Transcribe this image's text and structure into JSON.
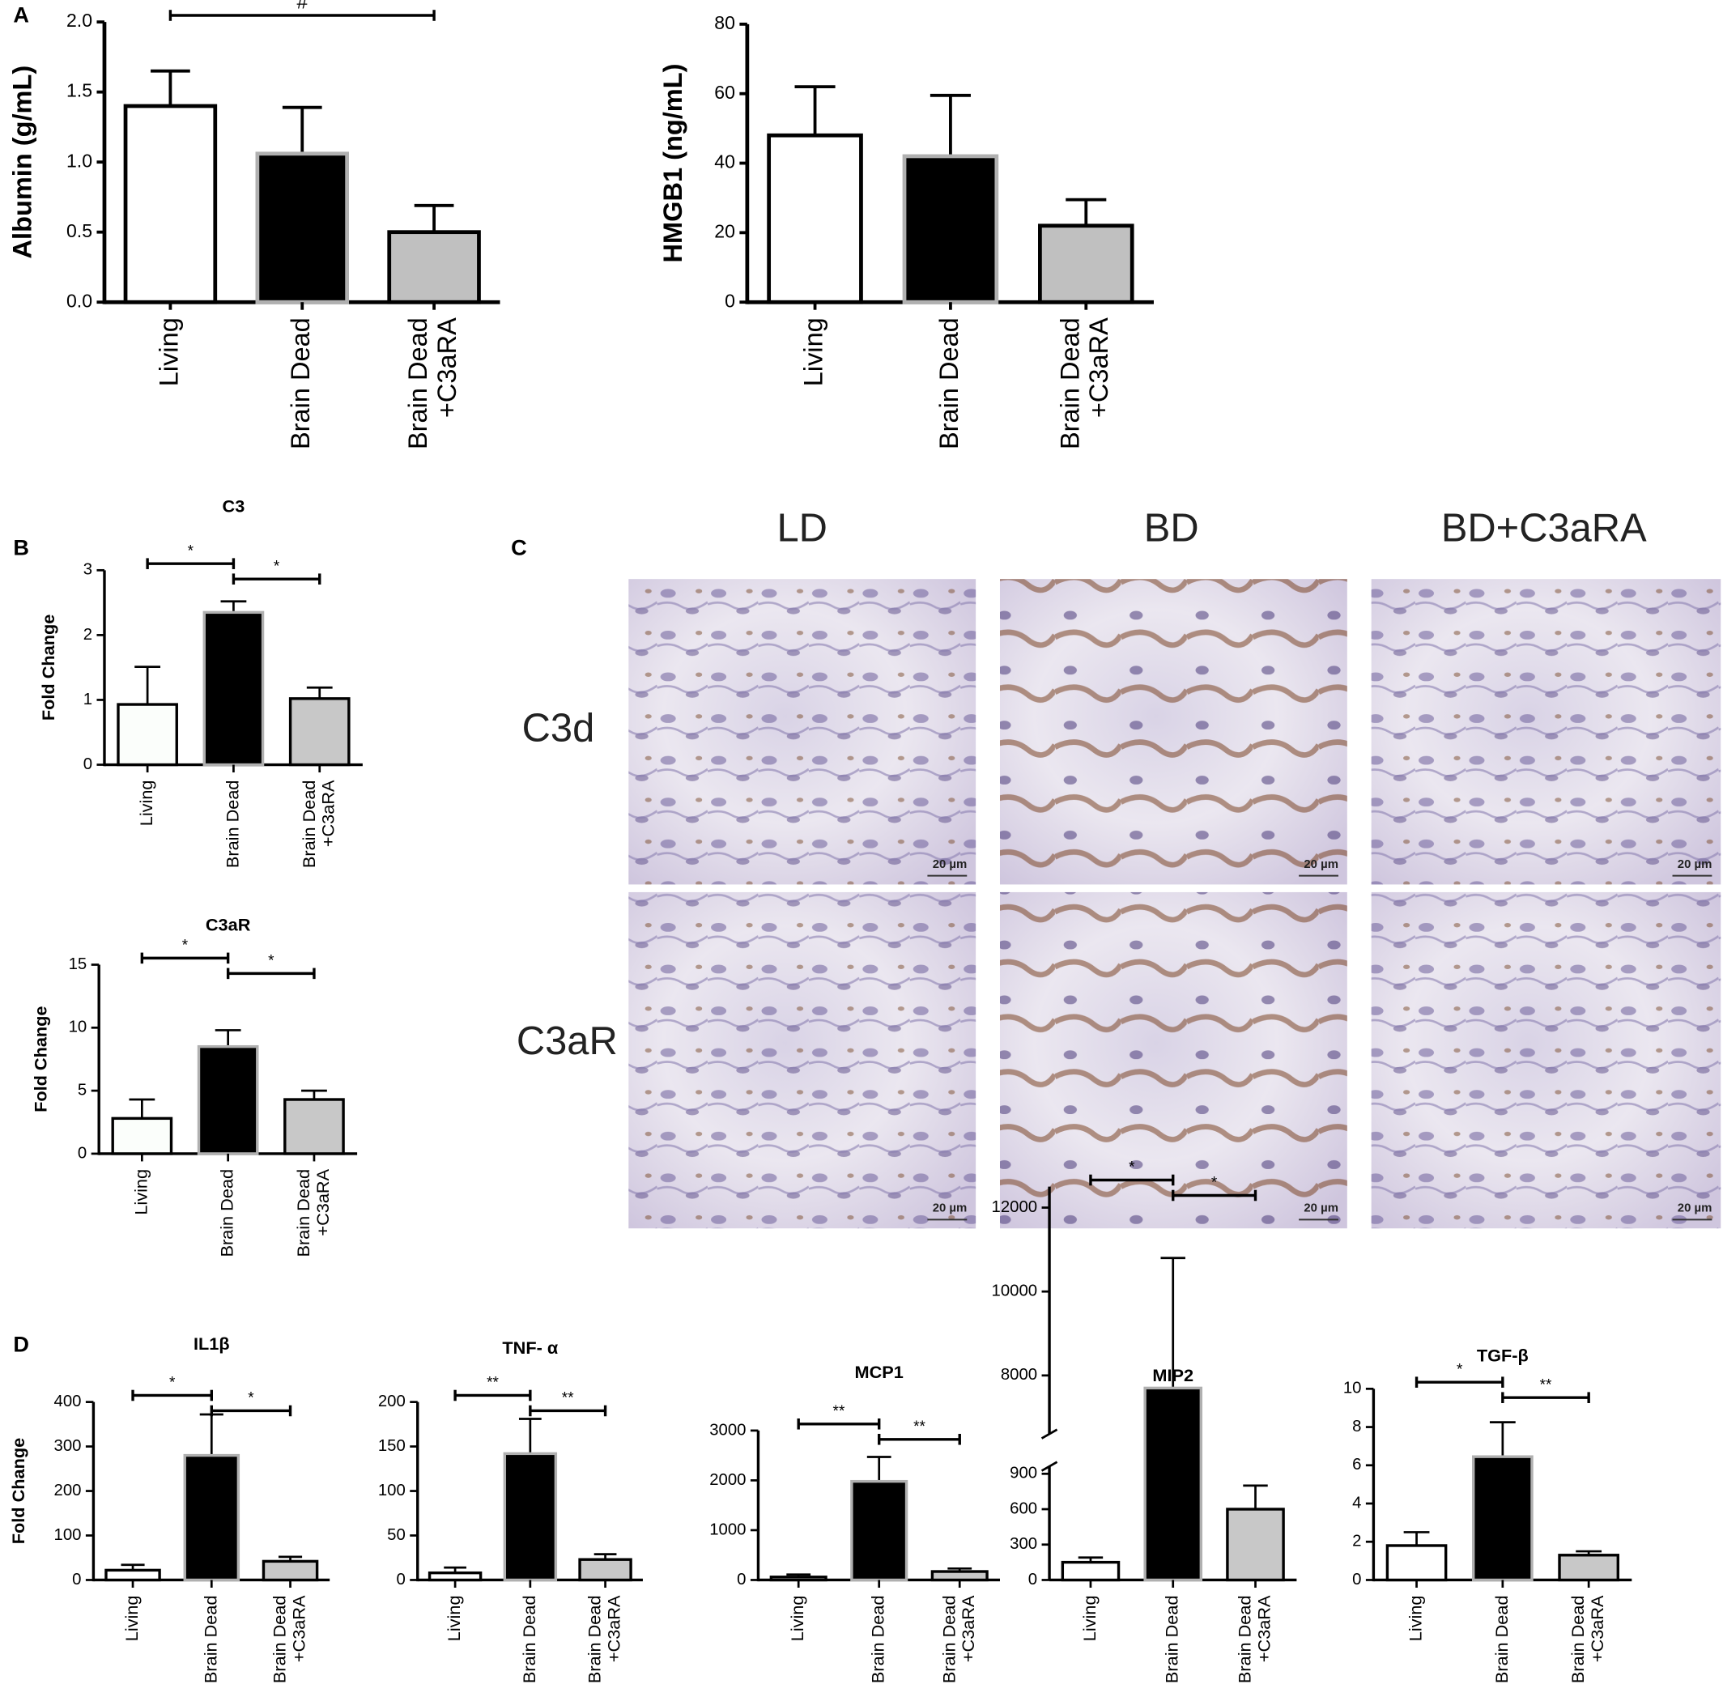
{
  "panel_labels": [
    "A",
    "B",
    "C",
    "D"
  ],
  "micrographs": {
    "columns": [
      "LD",
      "BD",
      "BD+C3aRA"
    ],
    "rows": [
      "C3d",
      "C3aR"
    ],
    "scale_bar": "20 µm"
  },
  "chart_data": [
    {
      "type": "bar",
      "ylabel": "Albumin (g/mL)",
      "categories": [
        "Living",
        "Brain Dead",
        "Brain Dead\n+C3aRA"
      ],
      "values": [
        1.4,
        1.06,
        0.5
      ],
      "errors": [
        0.25,
        0.33,
        0.19
      ],
      "colors": [
        "#ffffff",
        "#000000",
        "#c0c0c0"
      ],
      "ylim": [
        0,
        2
      ],
      "yticks": [
        {
          "value": 0,
          "label": "0.0"
        },
        {
          "value": 0.5,
          "label": "0.5"
        },
        {
          "value": 1,
          "label": "1.0"
        },
        {
          "value": 1.5,
          "label": "1.5"
        },
        {
          "value": 2,
          "label": "2.0"
        }
      ],
      "brackets": [
        {
          "between": [
            0,
            2
          ],
          "label": "#"
        }
      ]
    },
    {
      "type": "bar",
      "ylabel": "HMGB1 (ng/mL)",
      "categories": [
        "Living",
        "Brain Dead",
        "Brain Dead\n+C3aRA"
      ],
      "values": [
        48,
        42,
        22
      ],
      "errors": [
        14,
        17.5,
        7.5
      ],
      "colors": [
        "#ffffff",
        "#000000",
        "#c0c0c0"
      ],
      "ylim": [
        0,
        80
      ],
      "yticks": [
        0,
        20,
        40,
        60,
        80
      ],
      "brackets": []
    },
    {
      "type": "bar",
      "title": "C3",
      "ylabel": "Fold Change",
      "categories": [
        "Living",
        "Brain Dead",
        "Brain Dead\n+C3aRA"
      ],
      "values": [
        0.93,
        2.35,
        1.02
      ],
      "errors": [
        0.58,
        0.17,
        0.17
      ],
      "colors": [
        "#fbfefb",
        "#000000",
        "#c8c8c8"
      ],
      "ylim": [
        0,
        3
      ],
      "yticks": [
        0,
        1,
        2,
        3
      ],
      "brackets": [
        {
          "between": [
            0,
            1
          ],
          "label": "*"
        },
        {
          "between": [
            1,
            2
          ],
          "label": "*"
        }
      ]
    },
    {
      "type": "bar",
      "title": "C3aR",
      "ylabel": "Fold Change",
      "categories": [
        "Living",
        "Brain Dead",
        "Brain Dead\n+C3aRA"
      ],
      "values": [
        2.8,
        8.5,
        4.3
      ],
      "errors": [
        1.5,
        1.3,
        0.7
      ],
      "colors": [
        "#fbfefb",
        "#000000",
        "#c8c8c8"
      ],
      "ylim": [
        0,
        15
      ],
      "yticks": [
        0,
        5,
        10,
        15
      ],
      "brackets": [
        {
          "between": [
            0,
            1
          ],
          "label": "*"
        },
        {
          "between": [
            1,
            2
          ],
          "label": "*"
        }
      ]
    },
    {
      "type": "bar",
      "title": "IL1β",
      "ylabel": "Fold Change",
      "categories": [
        "Living",
        "Brain Dead",
        "Brain Dead\n+C3aRA"
      ],
      "values": [
        22,
        280,
        42
      ],
      "errors": [
        12,
        92,
        10
      ],
      "colors": [
        "#ffffff",
        "#000000",
        "#c8c8c8"
      ],
      "ylim": [
        0,
        400
      ],
      "yticks": [
        0,
        100,
        200,
        300,
        400
      ],
      "brackets": [
        {
          "between": [
            0,
            1
          ],
          "label": "*"
        },
        {
          "between": [
            1,
            2
          ],
          "label": "*"
        }
      ]
    },
    {
      "type": "bar",
      "title": "TNF- α",
      "categories": [
        "Living",
        "Brain Dead",
        "Brain Dead\n+C3aRA"
      ],
      "values": [
        8,
        142,
        23
      ],
      "errors": [
        6,
        39,
        6
      ],
      "colors": [
        "#ffffff",
        "#000000",
        "#c8c8c8"
      ],
      "ylim": [
        0,
        200
      ],
      "yticks": [
        0,
        50,
        100,
        150,
        200
      ],
      "brackets": [
        {
          "between": [
            0,
            1
          ],
          "label": "**"
        },
        {
          "between": [
            1,
            2
          ],
          "label": "**"
        }
      ]
    },
    {
      "type": "bar",
      "title": "MCP1",
      "categories": [
        "Living",
        "Brain Dead",
        "Brain Dead\n+C3aRA"
      ],
      "values": [
        60,
        1980,
        170
      ],
      "errors": [
        50,
        490,
        60
      ],
      "colors": [
        "#ffffff",
        "#000000",
        "#c8c8c8"
      ],
      "ylim": [
        0,
        3000
      ],
      "yticks": [
        0,
        1000,
        2000,
        3000
      ],
      "brackets": [
        {
          "between": [
            0,
            1
          ],
          "label": "**"
        },
        {
          "between": [
            1,
            2
          ],
          "label": "**"
        }
      ]
    },
    {
      "type": "bar",
      "title": "MIP2",
      "categories": [
        "Living",
        "Brain Dead",
        "Brain Dead\n+C3aRA"
      ],
      "values": [
        150,
        7700,
        600
      ],
      "errors": [
        40,
        3100,
        200
      ],
      "colors": [
        "#ffffff",
        "#000000",
        "#c8c8c8"
      ],
      "ylim": [
        0,
        12500
      ],
      "axis_break": [
        1000,
        6500
      ],
      "yticks": [
        0,
        300,
        600,
        900,
        8000,
        10000,
        12000
      ],
      "brackets": [
        {
          "between": [
            0,
            1
          ],
          "label": "*"
        },
        {
          "between": [
            1,
            2
          ],
          "label": "*"
        }
      ]
    },
    {
      "type": "bar",
      "title": "TGF-β",
      "categories": [
        "Living",
        "Brain Dead",
        "Brain Dead\n+C3aRA"
      ],
      "values": [
        1.8,
        6.45,
        1.3
      ],
      "errors": [
        0.7,
        1.8,
        0.2
      ],
      "colors": [
        "#ffffff",
        "#000000",
        "#c8c8c8"
      ],
      "ylim": [
        0,
        10
      ],
      "yticks": [
        0,
        2,
        4,
        6,
        8,
        10
      ],
      "brackets": [
        {
          "between": [
            0,
            1
          ],
          "label": "*"
        },
        {
          "between": [
            1,
            2
          ],
          "label": "**"
        }
      ]
    }
  ]
}
